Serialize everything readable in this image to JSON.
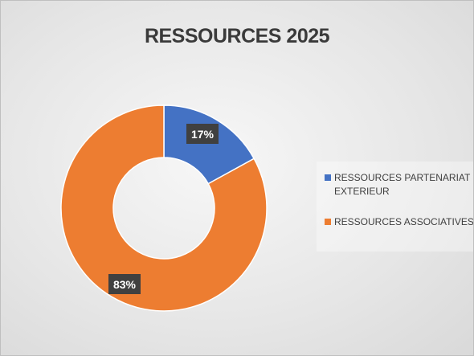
{
  "chart_data": {
    "type": "pie",
    "title": "RESSOURCES 2025",
    "series": [
      {
        "name": "RESSOURCES PARTENARIAT EXTERIEUR",
        "value": 17,
        "label": "17%",
        "color": "#4472c4"
      },
      {
        "name": "RESSOURCES ASSOCIATIVES",
        "value": 83,
        "label": "83%",
        "color": "#ed7d31"
      }
    ],
    "legend_position": "right"
  }
}
